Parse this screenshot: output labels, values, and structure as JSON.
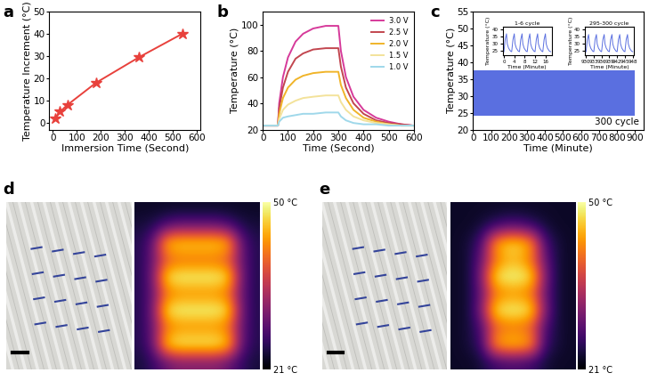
{
  "chart_data": [
    {
      "panel": "a",
      "type": "line",
      "x_label": "Immersion Time (Second)",
      "y_label": "Temperature Increment (°C)",
      "x": [
        10,
        30,
        60,
        180,
        360,
        540
      ],
      "series": [
        {
          "color": "#e8413c",
          "marker": "star",
          "line_style": "solid",
          "values": [
            2,
            5,
            8,
            18,
            29.5,
            40
          ]
        }
      ],
      "xlim": [
        -15,
        615
      ],
      "xticks": [
        0,
        100,
        200,
        300,
        400,
        500,
        600
      ],
      "ylim": [
        -3,
        50
      ],
      "yticks": [
        0,
        10,
        20,
        30,
        40,
        50
      ]
    },
    {
      "panel": "b",
      "type": "line",
      "x_label": "Time (Second)",
      "y_label": "Temperature (°C)",
      "x": [
        0,
        60,
        65,
        80,
        100,
        130,
        160,
        200,
        250,
        300,
        310,
        330,
        360,
        400,
        450,
        500,
        550,
        600
      ],
      "series": [
        {
          "name": "3.0 V",
          "color": "#d63a9a",
          "line_style": "solid",
          "values": [
            23,
            23,
            40,
            60,
            75,
            87,
            93,
            97,
            99,
            99,
            80,
            60,
            45,
            35,
            29,
            26,
            24,
            23
          ]
        },
        {
          "name": "2.5 V",
          "color": "#c2464f",
          "line_style": "solid",
          "values": [
            23,
            23,
            36,
            52,
            64,
            74,
            78,
            81,
            82,
            82,
            68,
            52,
            40,
            32,
            27,
            25,
            24,
            23
          ]
        },
        {
          "name": "2.0 V",
          "color": "#f0b429",
          "line_style": "solid",
          "values": [
            23,
            23,
            32,
            44,
            52,
            58,
            61,
            63,
            64,
            64,
            54,
            44,
            35,
            29,
            26,
            24,
            23,
            23
          ]
        },
        {
          "name": "1.5 V",
          "color": "#f3e29a",
          "line_style": "solid",
          "values": [
            23,
            23,
            28,
            35,
            39,
            42,
            44,
            45,
            46,
            46,
            41,
            35,
            30,
            27,
            25,
            24,
            23,
            23
          ]
        },
        {
          "name": "1.0 V",
          "color": "#9fd8ea",
          "line_style": "solid",
          "values": [
            23,
            23,
            26,
            29,
            30,
            31,
            32,
            32,
            33,
            33,
            30,
            27,
            25,
            24,
            24,
            23,
            23,
            23
          ]
        }
      ],
      "legend": "upper right",
      "xlim": [
        0,
        600
      ],
      "xticks": [
        0,
        100,
        200,
        300,
        400,
        500,
        600
      ],
      "ylim": [
        20,
        110
      ],
      "yticks": [
        20,
        40,
        60,
        80,
        100
      ]
    },
    {
      "panel": "c",
      "type": "area",
      "x_label": "Time (Minute)",
      "y_label": "Temperature (°C)",
      "band": {
        "x": [
          0,
          900
        ],
        "low": [
          24,
          24
        ],
        "high": [
          37.5,
          37.5
        ],
        "color": "#5a6fe0"
      },
      "annotation": "300 cycle",
      "xlim": [
        0,
        950
      ],
      "xticks": [
        0,
        100,
        200,
        300,
        400,
        500,
        600,
        700,
        800,
        900
      ],
      "ylim": [
        20,
        55
      ],
      "yticks": [
        20,
        25,
        30,
        35,
        40,
        45,
        50,
        55
      ],
      "insets": [
        {
          "type": "line",
          "title": "1-6 cycle",
          "x_label": "Time (Minute)",
          "y_label": "Temperature (°C)",
          "x": [
            0,
            0.5,
            1,
            1.3,
            1.8,
            2.5,
            3,
            3.5,
            4,
            4.3,
            4.8,
            5.5,
            6,
            6.5,
            7,
            7.3,
            7.8,
            8.5,
            9,
            9.5,
            10,
            10.3,
            10.8,
            11.5,
            12,
            12.5,
            13,
            13.3,
            13.8,
            14.5,
            15,
            15.5,
            16,
            16.3,
            16.8,
            17.5,
            18
          ],
          "series": [
            {
              "color": "#5a6fe0",
              "line_style": "solid",
              "values": [
                24.5,
                33,
                37,
                30,
                27,
                25,
                24.5,
                33,
                37,
                30,
                27,
                25,
                24.5,
                33,
                37,
                30,
                27,
                25,
                24.5,
                33,
                37,
                30,
                27,
                25,
                24.5,
                33,
                37,
                30,
                27,
                25,
                24.5,
                33,
                37,
                30,
                27,
                25,
                24.5
              ]
            }
          ],
          "xlim": [
            -0.5,
            18.5
          ],
          "xticks": [
            0,
            4,
            8,
            12,
            16
          ],
          "ylim": [
            22,
            42
          ],
          "yticks": [
            25,
            30,
            35,
            40
          ]
        },
        {
          "type": "line",
          "title": "295-300 cycle",
          "x_label": "Time (Minute)",
          "y_label": "Temperature (°C)",
          "x": [
            930,
            930.5,
            931,
            931.3,
            931.8,
            932.5,
            933,
            933.5,
            934,
            934.3,
            934.8,
            935.5,
            936,
            936.5,
            937,
            937.3,
            937.8,
            938.5,
            939,
            939.5,
            940,
            940.3,
            940.8,
            941.5,
            942,
            942.5,
            943,
            943.3,
            943.8,
            944.5,
            945,
            945.5,
            946,
            946.3,
            946.8,
            947.5,
            948
          ],
          "series": [
            {
              "color": "#5a6fe0",
              "line_style": "solid",
              "values": [
                24.5,
                33,
                36.5,
                30,
                27,
                25,
                24.5,
                33,
                36.5,
                30,
                27,
                25,
                24.5,
                33,
                36.5,
                30,
                27,
                25,
                24.5,
                33,
                36.5,
                30,
                27,
                25,
                24.5,
                33,
                36.5,
                30,
                27,
                25,
                24.5,
                33,
                36.5,
                30,
                27,
                25,
                24.5
              ]
            }
          ],
          "xlim": [
            929.5,
            948.5
          ],
          "xticks": [
            930,
            933,
            936,
            939,
            942,
            945,
            948
          ],
          "ylim": [
            22,
            42
          ],
          "yticks": [
            25,
            30,
            35,
            40
          ]
        }
      ]
    }
  ],
  "images": [
    {
      "panel": "d",
      "type": "heatmap",
      "cells": [
        [
          23,
          23,
          23,
          23,
          23,
          23,
          23,
          23,
          23,
          23
        ],
        [
          24,
          25,
          28,
          30,
          30,
          30,
          30,
          28,
          25,
          24
        ],
        [
          25,
          30,
          46,
          48,
          48,
          48,
          48,
          46,
          30,
          25
        ],
        [
          25,
          30,
          38,
          40,
          40,
          40,
          40,
          38,
          30,
          25
        ],
        [
          25,
          31,
          48,
          50,
          50,
          50,
          50,
          48,
          31,
          25
        ],
        [
          25,
          30,
          40,
          42,
          42,
          42,
          42,
          40,
          30,
          25
        ],
        [
          25,
          31,
          48,
          50,
          50,
          50,
          50,
          48,
          31,
          25
        ],
        [
          25,
          30,
          40,
          42,
          42,
          42,
          42,
          40,
          30,
          25
        ],
        [
          25,
          30,
          47,
          50,
          50,
          50,
          50,
          47,
          30,
          25
        ],
        [
          24,
          26,
          29,
          31,
          31,
          31,
          31,
          29,
          26,
          24
        ]
      ],
      "colorbar": {
        "range": [
          21,
          50
        ],
        "ticks": [
          {
            "value": 21,
            "label": "21 °C"
          },
          {
            "value": 50,
            "label": "50 °C"
          }
        ]
      }
    },
    {
      "panel": "e",
      "type": "heatmap",
      "cells": [
        [
          23,
          23,
          23,
          23,
          23,
          23,
          23,
          23,
          23,
          23
        ],
        [
          23,
          23,
          24,
          26,
          28,
          28,
          26,
          24,
          23,
          23
        ],
        [
          23,
          24,
          28,
          44,
          48,
          48,
          44,
          28,
          24,
          23
        ],
        [
          23,
          24,
          30,
          40,
          44,
          44,
          40,
          30,
          24,
          23
        ],
        [
          23,
          24,
          32,
          48,
          50,
          50,
          48,
          32,
          24,
          23
        ],
        [
          23,
          24,
          30,
          40,
          42,
          42,
          40,
          30,
          24,
          23
        ],
        [
          23,
          24,
          32,
          48,
          50,
          50,
          48,
          32,
          24,
          23
        ],
        [
          23,
          24,
          28,
          38,
          40,
          40,
          38,
          28,
          24,
          23
        ],
        [
          23,
          24,
          27,
          44,
          47,
          47,
          44,
          27,
          24,
          23
        ],
        [
          23,
          23,
          24,
          26,
          27,
          27,
          26,
          24,
          23,
          23
        ]
      ],
      "colorbar": {
        "range": [
          21,
          50
        ],
        "ticks": [
          {
            "value": 21,
            "label": "21 °C"
          },
          {
            "value": 50,
            "label": "50 °C"
          }
        ]
      }
    }
  ]
}
